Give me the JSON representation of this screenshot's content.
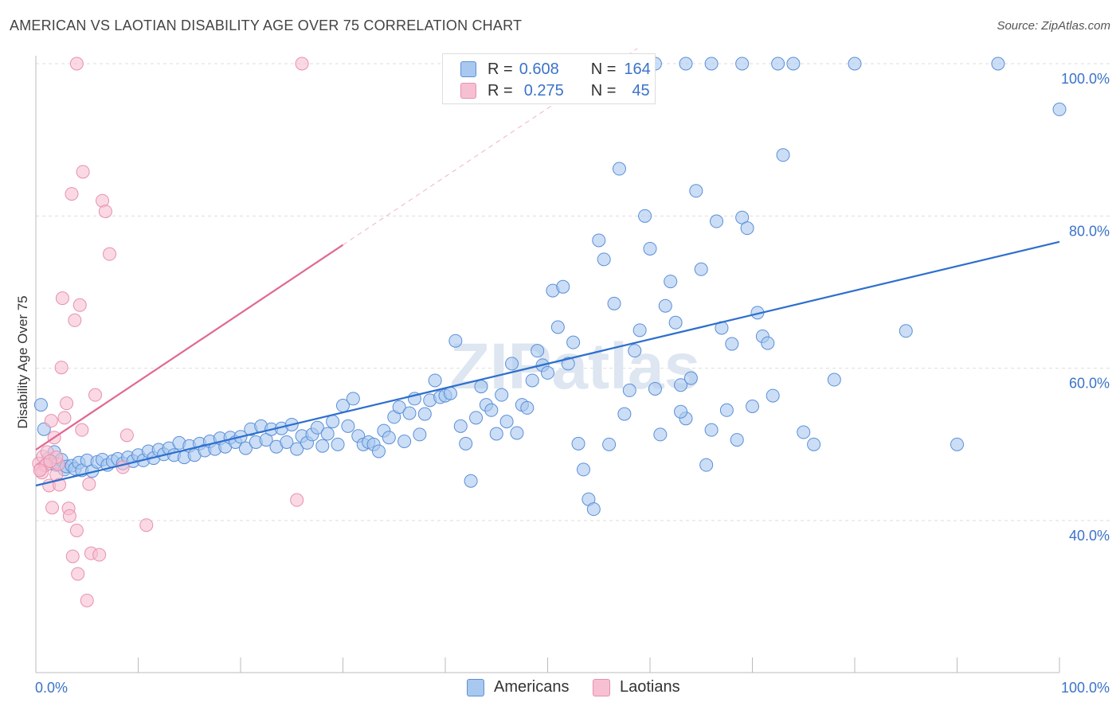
{
  "title": "AMERICAN VS LAOTIAN DISABILITY AGE OVER 75 CORRELATION CHART",
  "source": "Source: ZipAtlas.com",
  "watermark": "ZIPatlas",
  "legend": {
    "americans": {
      "r_label": "R =",
      "r_value": "0.608",
      "n_label": "N =",
      "n_value": "164"
    },
    "laotians": {
      "r_label": "R =",
      "r_value": "0.275",
      "n_label": "N =",
      "n_value": "45"
    }
  },
  "colors": {
    "americans_fill": "#a9c8f0",
    "americans_stroke": "#5b8fd8",
    "americans_line": "#2d6fcd",
    "laotians_fill": "#f6c0d2",
    "laotians_stroke": "#e890ac",
    "laotians_line": "#e06890",
    "axis_text": "#3b73c9",
    "grid": "#dddddd"
  },
  "chart_data": {
    "type": "scatter",
    "title": "AMERICAN VS LAOTIAN DISABILITY AGE OVER 75 CORRELATION CHART",
    "xlabel": "",
    "ylabel": "Disability Age Over 75",
    "xlim": [
      0,
      100
    ],
    "ylim": [
      20,
      102
    ],
    "x_tick_labels": [
      "0.0%",
      "100.0%"
    ],
    "y_ticks": [
      {
        "value": 40,
        "label": "40.0%"
      },
      {
        "value": 60,
        "label": "60.0%"
      },
      {
        "value": 80,
        "label": "80.0%"
      },
      {
        "value": 100,
        "label": "100.0%"
      }
    ],
    "grid": true,
    "legend_position": "top-center",
    "series": [
      {
        "name": "Americans",
        "color": "#a9c8f0",
        "trend": {
          "x0": 0,
          "y0": 44.6,
          "x1": 100,
          "y1": 76.6
        },
        "points": [
          [
            0.5,
            55.2
          ],
          [
            0.8,
            52.0
          ],
          [
            1.2,
            48.1
          ],
          [
            1.5,
            47.5
          ],
          [
            1.8,
            49.0
          ],
          [
            2.0,
            47.3
          ],
          [
            2.5,
            48.0
          ],
          [
            2.8,
            46.7
          ],
          [
            3.0,
            47.1
          ],
          [
            3.5,
            47.2
          ],
          [
            3.8,
            46.8
          ],
          [
            4.2,
            47.6
          ],
          [
            4.5,
            46.6
          ],
          [
            5.0,
            47.9
          ],
          [
            5.5,
            46.5
          ],
          [
            6.0,
            47.7
          ],
          [
            6.5,
            48.0
          ],
          [
            7.0,
            47.3
          ],
          [
            7.5,
            47.8
          ],
          [
            8.0,
            48.1
          ],
          [
            8.5,
            47.5
          ],
          [
            9.0,
            48.3
          ],
          [
            9.5,
            47.8
          ],
          [
            10.0,
            48.6
          ],
          [
            10.5,
            47.9
          ],
          [
            11.0,
            49.1
          ],
          [
            11.5,
            48.2
          ],
          [
            12.0,
            49.3
          ],
          [
            12.5,
            48.7
          ],
          [
            13.0,
            49.5
          ],
          [
            13.5,
            48.6
          ],
          [
            14.0,
            50.2
          ],
          [
            14.5,
            48.3
          ],
          [
            15.0,
            49.8
          ],
          [
            15.5,
            48.6
          ],
          [
            16.0,
            50.1
          ],
          [
            16.5,
            49.2
          ],
          [
            17.0,
            50.4
          ],
          [
            17.5,
            49.4
          ],
          [
            18.0,
            50.8
          ],
          [
            18.5,
            49.7
          ],
          [
            19.0,
            50.9
          ],
          [
            19.5,
            50.3
          ],
          [
            20.0,
            51.0
          ],
          [
            20.5,
            49.5
          ],
          [
            21.0,
            52.0
          ],
          [
            21.5,
            50.3
          ],
          [
            22.0,
            52.4
          ],
          [
            22.5,
            50.6
          ],
          [
            23.0,
            52.0
          ],
          [
            23.5,
            49.7
          ],
          [
            24.0,
            52.1
          ],
          [
            24.5,
            50.3
          ],
          [
            25.0,
            52.6
          ],
          [
            25.5,
            49.4
          ],
          [
            26.0,
            51.1
          ],
          [
            26.5,
            50.2
          ],
          [
            27.0,
            51.3
          ],
          [
            27.5,
            52.2
          ],
          [
            28.0,
            49.8
          ],
          [
            28.5,
            51.4
          ],
          [
            29.0,
            53.0
          ],
          [
            29.5,
            50.0
          ],
          [
            30.0,
            55.1
          ],
          [
            30.5,
            52.4
          ],
          [
            31.0,
            56.0
          ],
          [
            31.5,
            51.1
          ],
          [
            32.0,
            50.0
          ],
          [
            32.5,
            50.3
          ],
          [
            33.0,
            50.0
          ],
          [
            33.5,
            49.1
          ],
          [
            34.0,
            51.8
          ],
          [
            34.5,
            50.9
          ],
          [
            35.0,
            53.6
          ],
          [
            35.5,
            54.9
          ],
          [
            36.0,
            50.4
          ],
          [
            36.5,
            54.1
          ],
          [
            37.0,
            56.0
          ],
          [
            37.5,
            51.3
          ],
          [
            38.0,
            54.0
          ],
          [
            38.5,
            55.8
          ],
          [
            39.0,
            58.4
          ],
          [
            39.5,
            56.2
          ],
          [
            40.0,
            56.4
          ],
          [
            40.5,
            56.7
          ],
          [
            41.0,
            63.6
          ],
          [
            41.5,
            52.4
          ],
          [
            42.0,
            50.1
          ],
          [
            42.5,
            45.2
          ],
          [
            43.0,
            53.5
          ],
          [
            43.5,
            57.6
          ],
          [
            44.0,
            55.2
          ],
          [
            44.5,
            54.5
          ],
          [
            45.0,
            51.4
          ],
          [
            45.5,
            56.5
          ],
          [
            46.0,
            53.0
          ],
          [
            46.5,
            60.6
          ],
          [
            47.0,
            51.5
          ],
          [
            47.5,
            55.2
          ],
          [
            48.0,
            54.8
          ],
          [
            48.5,
            58.4
          ],
          [
            49.0,
            62.3
          ],
          [
            49.5,
            60.4
          ],
          [
            50.0,
            59.4
          ],
          [
            50.5,
            70.2
          ],
          [
            51.0,
            65.4
          ],
          [
            51.5,
            70.7
          ],
          [
            52.0,
            60.6
          ],
          [
            52.5,
            63.4
          ],
          [
            53.0,
            50.1
          ],
          [
            53.5,
            46.7
          ],
          [
            54.0,
            42.8
          ],
          [
            54.5,
            41.5
          ],
          [
            55.0,
            76.8
          ],
          [
            55.5,
            74.3
          ],
          [
            56.0,
            50.0
          ],
          [
            56.5,
            68.5
          ],
          [
            57.0,
            86.2
          ],
          [
            57.5,
            54.0
          ],
          [
            58.0,
            57.1
          ],
          [
            58.5,
            62.3
          ],
          [
            59.0,
            65.0
          ],
          [
            59.5,
            80.0
          ],
          [
            60.0,
            75.7
          ],
          [
            60.5,
            57.3
          ],
          [
            61.0,
            51.3
          ],
          [
            61.5,
            68.2
          ],
          [
            62.0,
            71.4
          ],
          [
            62.5,
            66.0
          ],
          [
            63.0,
            57.8
          ],
          [
            63.5,
            53.4
          ],
          [
            64.0,
            58.7
          ],
          [
            64.5,
            83.3
          ],
          [
            65.0,
            73.0
          ],
          [
            65.5,
            47.3
          ],
          [
            66.0,
            51.9
          ],
          [
            66.5,
            79.3
          ],
          [
            67.0,
            65.3
          ],
          [
            67.5,
            54.5
          ],
          [
            68.0,
            63.2
          ],
          [
            68.5,
            50.6
          ],
          [
            69.0,
            79.8
          ],
          [
            69.5,
            78.4
          ],
          [
            70.0,
            55.0
          ],
          [
            70.5,
            67.3
          ],
          [
            71.0,
            64.2
          ],
          [
            71.5,
            63.3
          ],
          [
            72.0,
            56.4
          ],
          [
            72.5,
            100.0
          ],
          [
            73.0,
            88.0
          ],
          [
            74.0,
            100.0
          ],
          [
            75.0,
            51.6
          ],
          [
            76.0,
            50.0
          ],
          [
            78.0,
            58.5
          ],
          [
            80.0,
            100.0
          ],
          [
            85.0,
            64.9
          ],
          [
            90.0,
            50.0
          ],
          [
            94.0,
            100.0
          ],
          [
            100.0,
            94.0
          ],
          [
            66.0,
            100.0
          ],
          [
            69.0,
            100.0
          ],
          [
            63.5,
            100.0
          ],
          [
            60.5,
            100.0
          ],
          [
            63.0,
            54.3
          ]
        ]
      },
      {
        "name": "Laotians",
        "color": "#f6c0d2",
        "trend": {
          "x0": 0,
          "y0": 49.3,
          "x1": 30,
          "y1": 76.2
        },
        "points": [
          [
            0.3,
            47.5
          ],
          [
            0.5,
            46.8
          ],
          [
            0.7,
            48.4
          ],
          [
            0.9,
            47.2
          ],
          [
            1.1,
            49.0
          ],
          [
            1.3,
            44.6
          ],
          [
            1.5,
            53.1
          ],
          [
            1.6,
            41.7
          ],
          [
            1.8,
            50.9
          ],
          [
            2.0,
            46.0
          ],
          [
            2.2,
            47.4
          ],
          [
            2.3,
            44.7
          ],
          [
            2.5,
            60.1
          ],
          [
            2.6,
            69.2
          ],
          [
            2.8,
            53.5
          ],
          [
            3.0,
            55.4
          ],
          [
            3.2,
            41.6
          ],
          [
            3.3,
            40.6
          ],
          [
            3.5,
            82.9
          ],
          [
            3.6,
            35.3
          ],
          [
            3.8,
            66.3
          ],
          [
            4.0,
            38.7
          ],
          [
            4.1,
            33.0
          ],
          [
            4.3,
            68.3
          ],
          [
            4.5,
            51.9
          ],
          [
            4.6,
            85.8
          ],
          [
            5.0,
            29.5
          ],
          [
            5.2,
            44.8
          ],
          [
            5.4,
            35.7
          ],
          [
            5.8,
            56.5
          ],
          [
            6.2,
            35.5
          ],
          [
            6.5,
            82.0
          ],
          [
            6.8,
            80.6
          ],
          [
            7.2,
            75.0
          ],
          [
            8.5,
            47.0
          ],
          [
            8.9,
            51.2
          ],
          [
            10.8,
            39.4
          ],
          [
            25.5,
            42.7
          ],
          [
            4.0,
            100.0
          ],
          [
            26.0,
            100.0
          ],
          [
            1.0,
            47.3
          ],
          [
            0.6,
            46.3
          ],
          [
            2.0,
            48.3
          ],
          [
            1.4,
            47.8
          ],
          [
            0.4,
            46.6
          ]
        ]
      }
    ]
  }
}
